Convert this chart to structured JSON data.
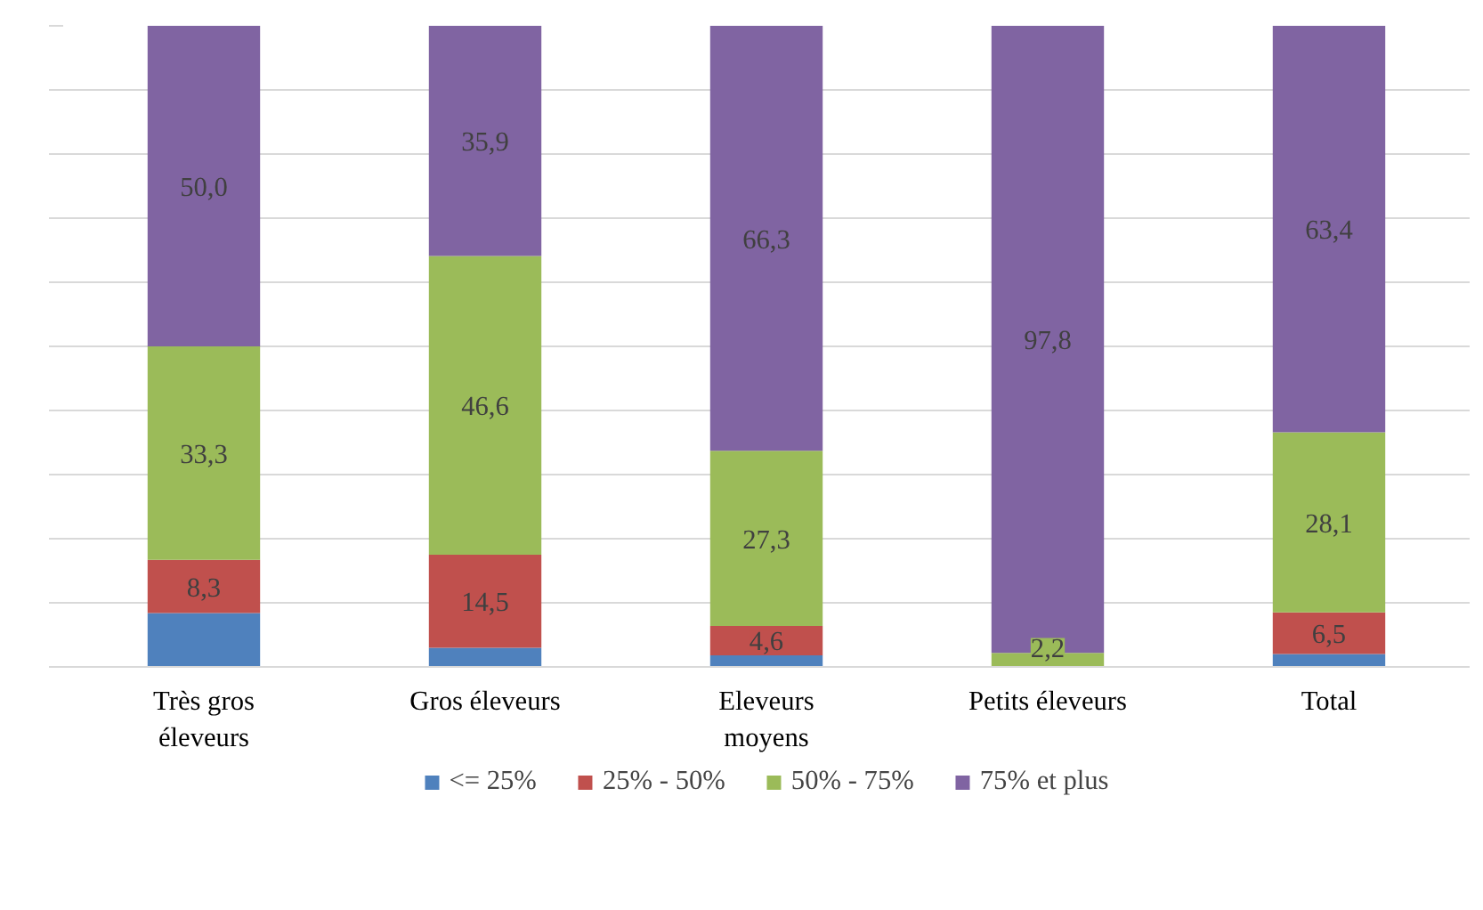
{
  "chart_data": {
    "type": "bar",
    "stacked": true,
    "categories": [
      "Très gros\néleveurs",
      "Gros éleveurs",
      "Eleveurs\nmoyens",
      "Petits éleveurs",
      "Total"
    ],
    "series": [
      {
        "name": "<= 25%",
        "color": "#4f81bd",
        "values": [
          8.4,
          3.0,
          1.8,
          0,
          2.0
        ],
        "value_labels": [
          null,
          null,
          null,
          null,
          null
        ]
      },
      {
        "name": "25% - 50%",
        "color": "#c0504d",
        "values": [
          8.3,
          14.5,
          4.6,
          0,
          6.5
        ],
        "value_labels": [
          "8,3",
          "14,5",
          "4,6",
          null,
          "6,5"
        ]
      },
      {
        "name": "50% - 75%",
        "color": "#9bbb59",
        "values": [
          33.3,
          46.6,
          27.3,
          2.2,
          28.1
        ],
        "value_labels": [
          "33,3",
          "46,6",
          "27,3",
          "2,2",
          "28,1"
        ]
      },
      {
        "name": "75% et plus",
        "color": "#8064a2",
        "values": [
          50.0,
          35.9,
          66.3,
          97.8,
          63.4
        ],
        "value_labels": [
          "50,0",
          "35,9",
          "66,3",
          "97,8",
          "63,4"
        ]
      }
    ],
    "ylim": [
      0,
      100
    ],
    "yticks": [
      {
        "value": 0,
        "label": null
      },
      {
        "value": 10,
        "label": null
      },
      {
        "value": 20,
        "label": null
      },
      {
        "value": 30,
        "label": null
      },
      {
        "value": 40,
        "label": null
      },
      {
        "value": 50,
        "label": null
      },
      {
        "value": 60,
        "label": null
      },
      {
        "value": 70,
        "label": null
      },
      {
        "value": 80,
        "label": null
      },
      {
        "value": 90,
        "label": null
      },
      {
        "value": 100,
        "label": null
      }
    ],
    "grid": "y",
    "legend": "bottom"
  }
}
